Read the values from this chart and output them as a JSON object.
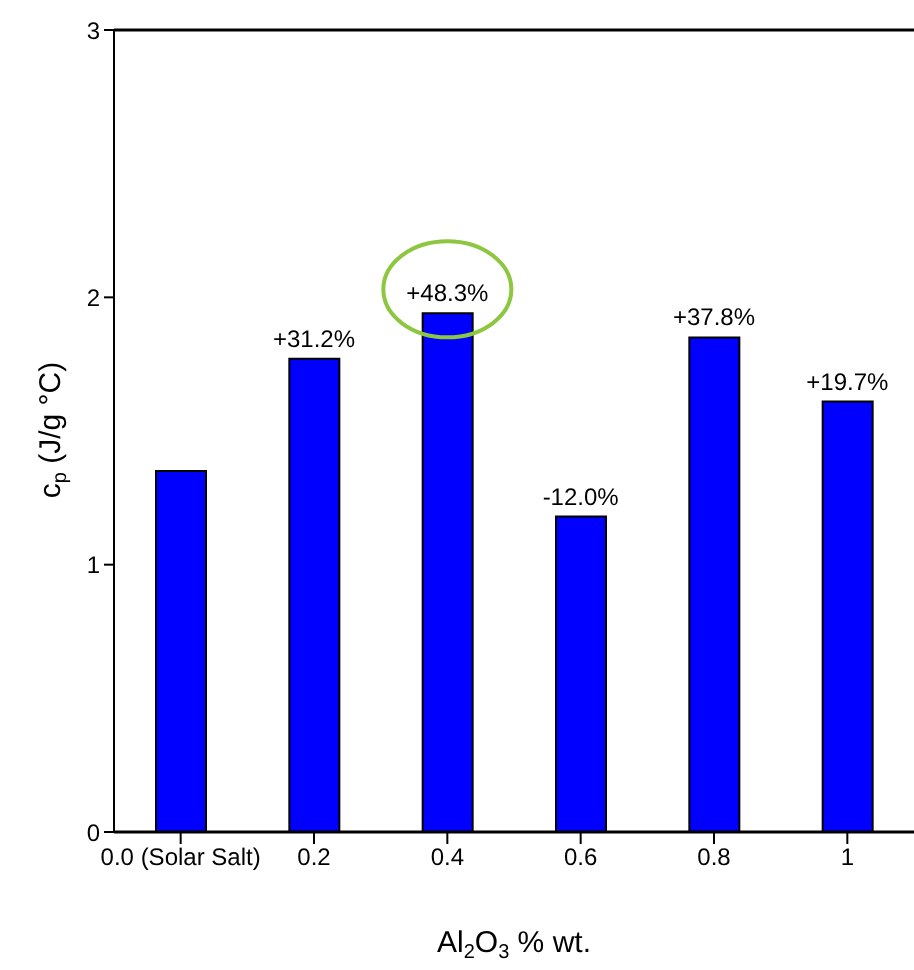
{
  "chart_data": {
    "type": "bar",
    "xlabel": "Al$_{2}$O$_{3}$ % wt.",
    "ylabel": "c$_{p}$ (J/g °C)",
    "categories": [
      "0.0 (Solar Salt)",
      "0.2",
      "0.4",
      "0.6",
      "0.8",
      "1"
    ],
    "values": [
      1.35,
      1.77,
      1.94,
      1.18,
      1.85,
      1.61
    ],
    "annotations": [
      {
        "text": "+31.2%",
        "x": "0.2",
        "y": 1.77
      },
      {
        "text": "+48.3%",
        "x": "0.4",
        "y": 1.94
      },
      {
        "text": "-12.0%",
        "x": "0.6",
        "y": 1.18
      },
      {
        "text": "+37.8%",
        "x": "0.8",
        "y": 1.85
      },
      {
        "text": "+19.7%",
        "x": "1",
        "y": 1.61
      }
    ],
    "color": "#0000ff",
    "ylim": [
      0,
      3
    ],
    "yticks": [
      0,
      1,
      2,
      3
    ],
    "grid": false,
    "legend": false
  }
}
